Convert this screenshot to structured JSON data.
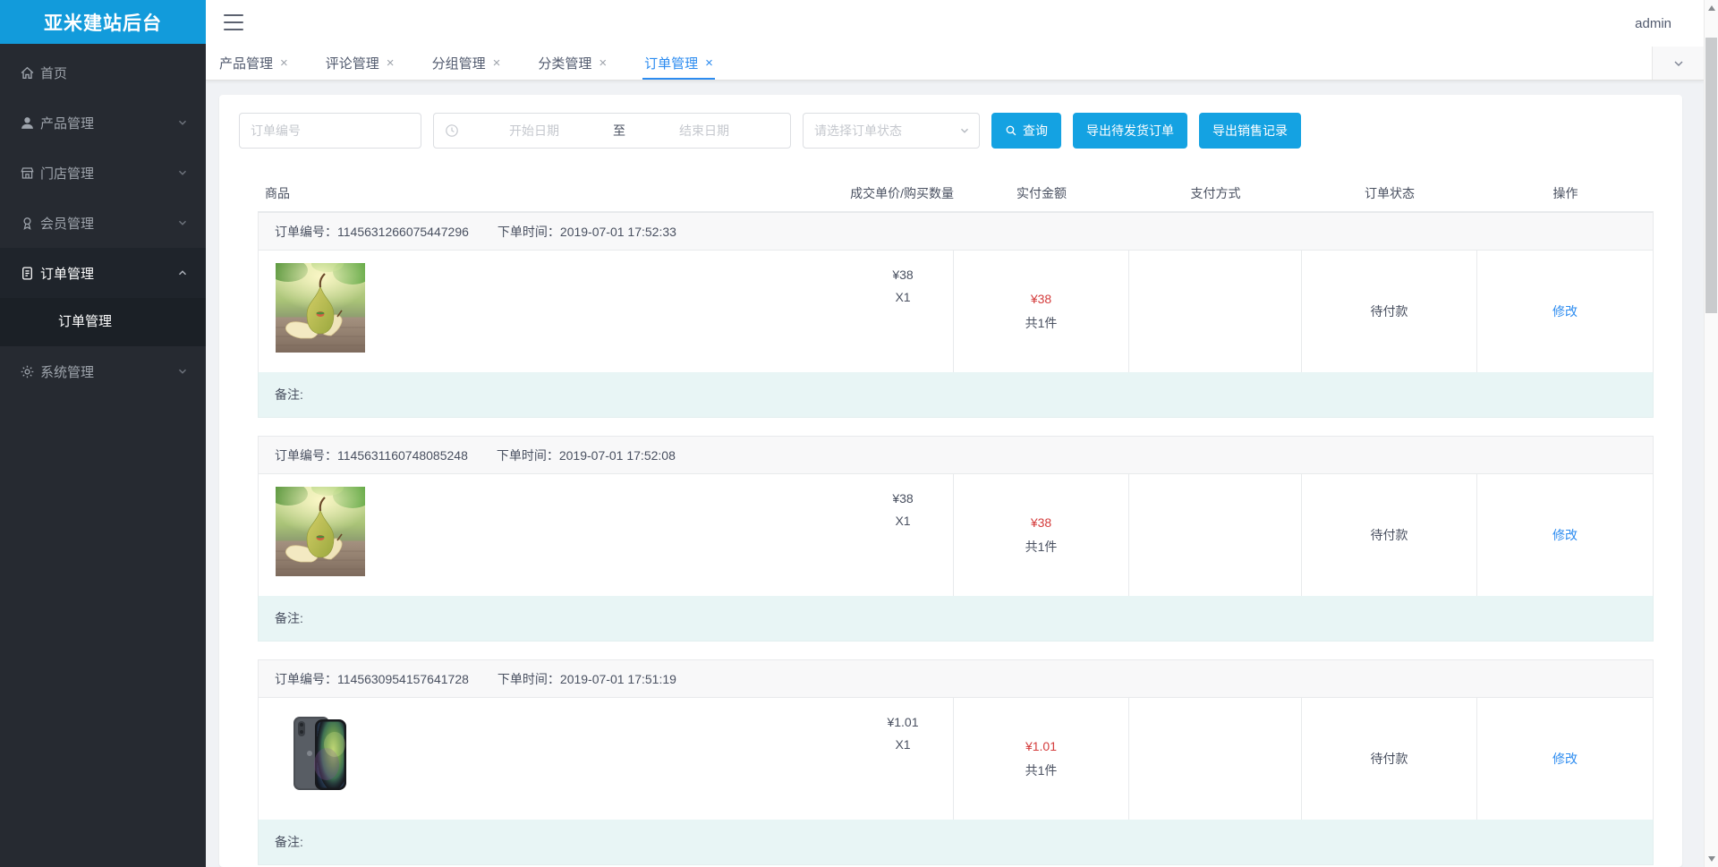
{
  "app": {
    "logo_title": "亚米建站后台",
    "user": "admin"
  },
  "sidebar": {
    "items": [
      {
        "label": "首页",
        "icon": "home-icon",
        "expandable": false
      },
      {
        "label": "产品管理",
        "icon": "user-icon",
        "expandable": true
      },
      {
        "label": "门店管理",
        "icon": "shop-icon",
        "expandable": true
      },
      {
        "label": "会员管理",
        "icon": "member-icon",
        "expandable": true
      },
      {
        "label": "订单管理",
        "icon": "order-icon",
        "expandable": true,
        "expanded": true,
        "active": true,
        "children": [
          {
            "label": "订单管理",
            "active": true
          }
        ]
      },
      {
        "label": "系统管理",
        "icon": "gear-icon",
        "expandable": true
      }
    ]
  },
  "tabs": {
    "close_glyph": "×",
    "items": [
      {
        "label": "产品管理",
        "active": false
      },
      {
        "label": "评论管理",
        "active": false
      },
      {
        "label": "分组管理",
        "active": false
      },
      {
        "label": "分类管理",
        "active": false
      },
      {
        "label": "订单管理",
        "active": true
      }
    ]
  },
  "filters": {
    "order_no_placeholder": "订单编号",
    "date_start_placeholder": "开始日期",
    "date_separator": "至",
    "date_end_placeholder": "结束日期",
    "status_placeholder": "请选择订单状态",
    "search_button": "查询",
    "export_pending_button": "导出待发货订单",
    "export_sales_button": "导出销售记录"
  },
  "table": {
    "headers": [
      "商品",
      "成交单价/购买数量",
      "实付金额",
      "支付方式",
      "订单状态",
      "操作"
    ],
    "order_no_label": "订单编号：",
    "order_time_label": "下单时间：",
    "remark_label": "备注:",
    "orders": [
      {
        "order_no": "1145631266075447296",
        "order_time": "2019-07-01 17:52:33",
        "product_image": "pear",
        "unit_price": "¥38",
        "quantity": "X1",
        "paid_amount": "¥38",
        "total_pieces": "共1件",
        "payment_method": "",
        "status": "待付款",
        "action": "修改",
        "remark": ""
      },
      {
        "order_no": "1145631160748085248",
        "order_time": "2019-07-01 17:52:08",
        "product_image": "pear",
        "unit_price": "¥38",
        "quantity": "X1",
        "paid_amount": "¥38",
        "total_pieces": "共1件",
        "payment_method": "",
        "status": "待付款",
        "action": "修改",
        "remark": ""
      },
      {
        "order_no": "1145630954157641728",
        "order_time": "2019-07-01 17:51:19",
        "product_image": "iphone",
        "unit_price": "¥1.01",
        "quantity": "X1",
        "paid_amount": "¥1.01",
        "total_pieces": "共1件",
        "payment_method": "",
        "status": "待付款",
        "action": "修改",
        "remark": ""
      }
    ]
  },
  "colors": {
    "logo_bg": "#129bdb",
    "button_blue": "#14a2e2",
    "link_blue": "#2d8cf0",
    "price_red": "#d43c3c",
    "remark_bg": "#e8f5f5",
    "sidebar_bg": "#262a31"
  }
}
